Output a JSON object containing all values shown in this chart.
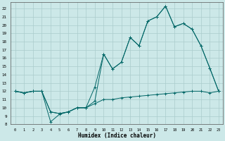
{
  "xlabel": "Humidex (Indice chaleur)",
  "bg_color": "#cce8e8",
  "grid_color": "#aacccc",
  "line_color": "#006666",
  "xlim": [
    -0.5,
    23.5
  ],
  "ylim": [
    8,
    22.8
  ],
  "xticks": [
    0,
    1,
    2,
    3,
    4,
    5,
    6,
    7,
    8,
    9,
    10,
    11,
    12,
    13,
    14,
    15,
    16,
    17,
    18,
    19,
    20,
    21,
    22,
    23
  ],
  "yticks": [
    8,
    9,
    10,
    11,
    12,
    13,
    14,
    15,
    16,
    17,
    18,
    19,
    20,
    21,
    22
  ],
  "bottom_x": [
    0,
    1,
    2,
    3,
    4,
    5,
    6,
    7,
    8,
    9,
    10,
    11,
    12,
    13,
    14,
    15,
    16,
    17,
    18,
    19,
    20,
    21,
    22,
    23
  ],
  "bottom_y": [
    12,
    11.8,
    12,
    12,
    9.5,
    9.3,
    9.5,
    10.0,
    10.0,
    10.5,
    11.0,
    11.0,
    11.2,
    11.3,
    11.4,
    11.5,
    11.6,
    11.7,
    11.8,
    11.9,
    12.0,
    12.0,
    11.8,
    12.0
  ],
  "mid_x": [
    0,
    1,
    2,
    3,
    4,
    5,
    6,
    7,
    8,
    9,
    10,
    11,
    12,
    13,
    14,
    15,
    16,
    17,
    18,
    19,
    20,
    21,
    22,
    23
  ],
  "mid_y": [
    12,
    11.8,
    12,
    12,
    9.5,
    9.3,
    9.5,
    10.0,
    10.0,
    10.8,
    16.5,
    14.7,
    15.5,
    18.5,
    17.5,
    20.5,
    21.0,
    22.3,
    19.8,
    20.2,
    19.5,
    17.5,
    14.8,
    12.0
  ],
  "top_x": [
    0,
    1,
    2,
    3,
    4,
    5,
    6,
    7,
    8,
    9,
    10,
    11,
    12,
    13,
    14,
    15,
    16,
    17,
    18,
    19,
    20,
    21,
    22,
    23
  ],
  "top_y": [
    12,
    11.8,
    12,
    12,
    8.3,
    9.2,
    9.5,
    10.0,
    10.0,
    12.5,
    16.5,
    14.7,
    15.5,
    18.5,
    17.5,
    20.5,
    21.0,
    22.3,
    19.8,
    20.2,
    19.5,
    17.5,
    14.8,
    12.0
  ]
}
